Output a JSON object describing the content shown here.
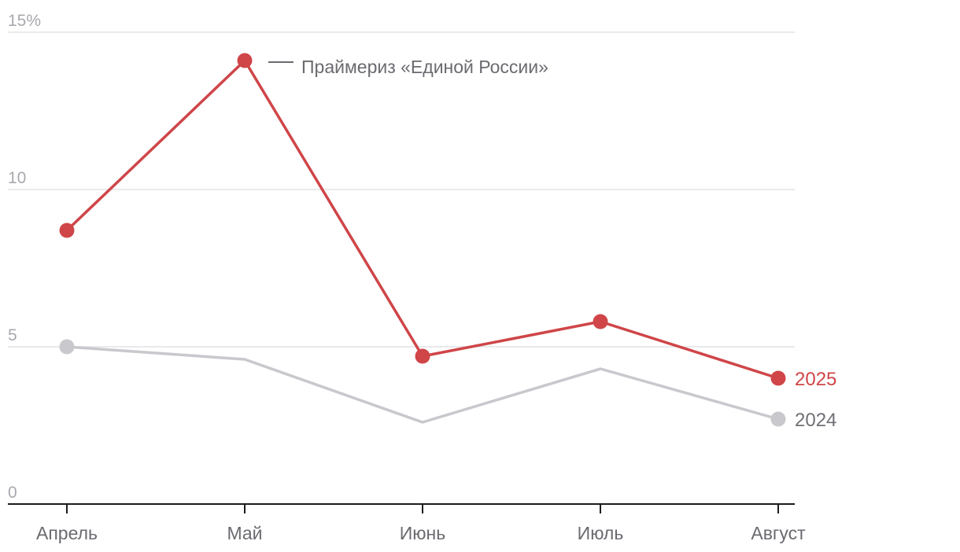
{
  "chart_data": {
    "type": "line",
    "categories": [
      "Апрель",
      "Май",
      "Июнь",
      "Июль",
      "Август"
    ],
    "series": [
      {
        "name": "2024",
        "values": [
          5.0,
          4.6,
          2.6,
          4.3,
          2.7
        ],
        "color": "#c8c8cd",
        "markers": [
          true,
          false,
          false,
          false,
          true
        ]
      },
      {
        "name": "2025",
        "values": [
          8.7,
          14.1,
          4.7,
          5.8,
          4.0
        ],
        "color": "#cf4548",
        "markers": [
          true,
          true,
          true,
          true,
          true
        ]
      }
    ],
    "ylim": [
      0,
      15
    ],
    "yticks": [
      {
        "value": 0,
        "label": "0"
      },
      {
        "value": 5,
        "label": "5"
      },
      {
        "value": 10,
        "label": "10"
      },
      {
        "value": 15,
        "label": "15%"
      }
    ],
    "grid": true,
    "annotation": {
      "text": "Праймериз «Единой России»",
      "category": "Май",
      "series": "2025"
    },
    "title": "",
    "xlabel": "",
    "ylabel": ""
  }
}
